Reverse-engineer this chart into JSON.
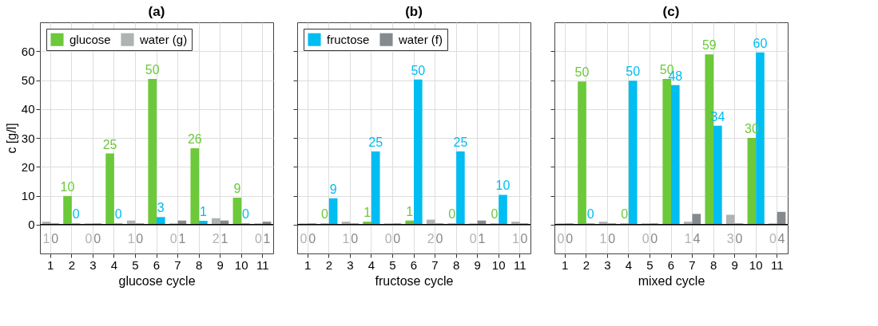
{
  "chart_data": [
    {
      "type": "bar",
      "title": "(a)",
      "xlabel": "glucose cycle",
      "ylabel": "c [g/l]",
      "categories": [
        "1",
        "2",
        "3",
        "4",
        "5",
        "6",
        "7",
        "8",
        "9",
        "10",
        "11"
      ],
      "series": [
        {
          "name": "water (g)",
          "color": "#b0b3b3",
          "values": [
            1.0,
            null,
            0.4,
            null,
            1.4,
            null,
            0.4,
            null,
            2.2,
            null,
            0.4
          ],
          "value_labels": [
            "1",
            null,
            "0",
            null,
            "1",
            null,
            "0",
            null,
            "2",
            null,
            "0"
          ]
        },
        {
          "color": "#858a8f",
          "values": [
            0.4,
            null,
            0.4,
            null,
            0.4,
            null,
            1.4,
            null,
            1.4,
            null,
            1.0
          ],
          "value_labels": [
            "0",
            null,
            "0",
            null,
            "0",
            null,
            "1",
            null,
            "1",
            null,
            "1"
          ]
        },
        {
          "name": "glucose",
          "color": "#6cc93a",
          "values": [
            null,
            9.9,
            null,
            24.6,
            null,
            50.4,
            null,
            26.4,
            null,
            9.3,
            null
          ],
          "value_labels": [
            null,
            "10",
            null,
            "25",
            null,
            "50",
            null,
            "26",
            null,
            "9",
            null
          ]
        },
        {
          "color": "#00bdf2",
          "values": [
            null,
            0.4,
            null,
            0.4,
            null,
            2.6,
            null,
            1.3,
            null,
            0.4,
            null
          ],
          "value_labels": [
            null,
            "0",
            null,
            "0",
            null,
            "3",
            null,
            "1",
            null,
            "0",
            null
          ]
        }
      ],
      "ylim": [
        -10,
        70
      ],
      "yticks": [
        0,
        10,
        20,
        30,
        40,
        50,
        60
      ],
      "grid": true,
      "legend": "top left",
      "ref_lines": [
        {
          "axis": "y",
          "value": 0,
          "color": "#000000"
        }
      ]
    },
    {
      "type": "bar",
      "title": "(b)",
      "xlabel": "fructose cycle",
      "categories": [
        "1",
        "2",
        "3",
        "4",
        "5",
        "6",
        "7",
        "8",
        "9",
        "10",
        "11"
      ],
      "series": [
        {
          "color": "#b0b3b3",
          "values": [
            0.4,
            null,
            1.0,
            null,
            0.4,
            null,
            1.7,
            null,
            0.4,
            null,
            1.0
          ],
          "value_labels": [
            "0",
            null,
            "1",
            null,
            "0",
            null,
            "2",
            null,
            "0",
            null,
            "1"
          ]
        },
        {
          "name": "water (f)",
          "color": "#858a8f",
          "values": [
            0.4,
            null,
            0.4,
            null,
            0.4,
            null,
            0.4,
            null,
            1.4,
            null,
            0.4
          ],
          "value_labels": [
            "0",
            null,
            "0",
            null,
            "0",
            null,
            "0",
            null,
            "1",
            null,
            "0"
          ]
        },
        {
          "color": "#6cc93a",
          "values": [
            null,
            0.4,
            null,
            1.0,
            null,
            1.4,
            null,
            0.4,
            null,
            0.4,
            null
          ],
          "value_labels": [
            null,
            "0",
            null,
            "1",
            null,
            "1",
            null,
            "0",
            null,
            "0",
            null
          ]
        },
        {
          "name": "fructose",
          "color": "#00bdf2",
          "values": [
            null,
            9.1,
            null,
            25.3,
            null,
            50.2,
            null,
            25.3,
            null,
            10.3,
            null
          ],
          "value_labels": [
            null,
            "9",
            null,
            "25",
            null,
            "50",
            null,
            "25",
            null,
            "10",
            null
          ]
        }
      ],
      "ylim": [
        -10,
        70
      ],
      "yticks": [
        0,
        10,
        20,
        30,
        40,
        50,
        60
      ],
      "grid": true,
      "legend": "top left",
      "tick_labels": "x",
      "ref_lines": [
        {
          "axis": "y",
          "value": 0,
          "color": "#000000"
        }
      ]
    },
    {
      "type": "bar",
      "title": "(c)",
      "xlabel": "mixed cycle",
      "categories": [
        "1",
        "2",
        "3",
        "4",
        "5",
        "6",
        "7",
        "8",
        "9",
        "10",
        "11"
      ],
      "series": [
        {
          "color": "#b0b3b3",
          "values": [
            0.4,
            null,
            1.0,
            null,
            0.4,
            null,
            1.0,
            null,
            3.4,
            null,
            0.4
          ],
          "value_labels": [
            "0",
            null,
            "1",
            null,
            "0",
            null,
            "1",
            null,
            "3",
            null,
            "0"
          ]
        },
        {
          "color": "#858a8f",
          "values": [
            0.4,
            null,
            0.4,
            null,
            0.4,
            null,
            3.7,
            null,
            0.4,
            null,
            4.4
          ],
          "value_labels": [
            "0",
            null,
            "0",
            null,
            "0",
            null,
            "4",
            null,
            "0",
            null,
            "4"
          ]
        },
        {
          "color": "#6cc93a",
          "values": [
            null,
            49.5,
            null,
            0.4,
            null,
            50.4,
            null,
            58.9,
            null,
            30.0,
            null
          ],
          "value_labels": [
            null,
            "50",
            null,
            "0",
            null,
            "50",
            null,
            "59",
            null,
            "30",
            null
          ]
        },
        {
          "color": "#00bdf2",
          "values": [
            null,
            0.4,
            null,
            49.8,
            null,
            48.3,
            null,
            34.2,
            null,
            59.6,
            null
          ],
          "value_labels": [
            null,
            "0",
            null,
            "50",
            null,
            "48",
            null,
            "34",
            null,
            "60",
            null
          ]
        }
      ],
      "ylim": [
        -10,
        70
      ],
      "yticks": [
        0,
        10,
        20,
        30,
        40,
        50,
        60
      ],
      "grid": true,
      "tick_labels": "x",
      "ref_lines": [
        {
          "axis": "y",
          "value": 0,
          "color": "#000000"
        }
      ]
    }
  ]
}
